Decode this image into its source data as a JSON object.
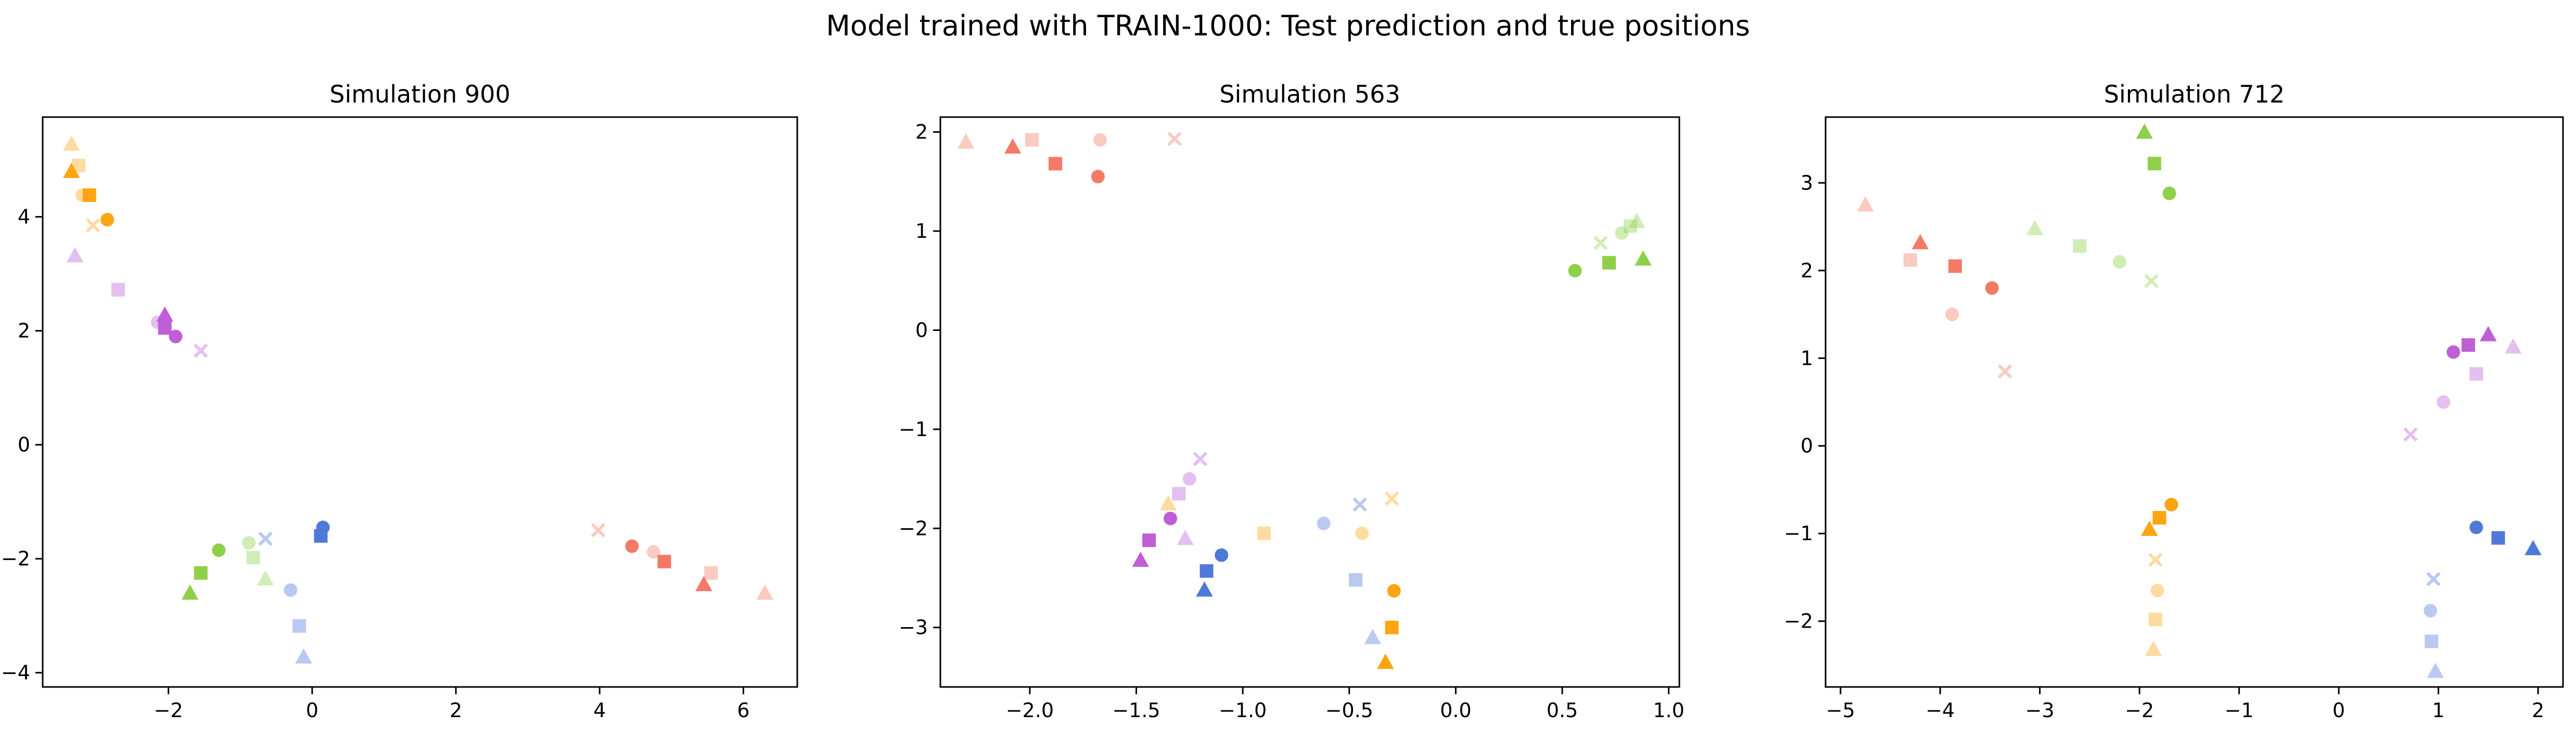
{
  "figure": {
    "title": "Model trained with TRAIN-1000: Test prediction and true positions"
  },
  "colors": {
    "red": "#f47a66",
    "orange": "#fda412",
    "green": "#8fd04a",
    "purple": "#bf5ed6",
    "blue": "#4f79d9"
  },
  "markers": {
    "circle": "circle",
    "square": "square",
    "triangle": "triangle-up",
    "cross": "x"
  },
  "chart_data": [
    {
      "type": "scatter",
      "title": "Simulation 900",
      "xlabel": "",
      "ylabel": "",
      "xlim": [
        -3.75,
        6.75
      ],
      "ylim": [
        -4.25,
        5.75
      ],
      "xticks": [
        -2,
        0,
        2,
        4,
        6
      ],
      "yticks": [
        -4,
        -2,
        0,
        2,
        4
      ],
      "grid": false,
      "points": [
        {
          "x": -3.35,
          "y": 5.28,
          "color": "orange",
          "marker": "triangle",
          "alpha": 0.4
        },
        {
          "x": -3.25,
          "y": 4.9,
          "color": "orange",
          "marker": "square",
          "alpha": 0.4
        },
        {
          "x": -3.35,
          "y": 4.8,
          "color": "orange",
          "marker": "triangle",
          "alpha": 1.0
        },
        {
          "x": -3.2,
          "y": 4.38,
          "color": "orange",
          "marker": "circle",
          "alpha": 0.4
        },
        {
          "x": -3.1,
          "y": 4.38,
          "color": "orange",
          "marker": "square",
          "alpha": 1.0
        },
        {
          "x": -3.05,
          "y": 3.85,
          "color": "orange",
          "marker": "cross",
          "alpha": 0.4
        },
        {
          "x": -2.85,
          "y": 3.95,
          "color": "orange",
          "marker": "circle",
          "alpha": 1.0
        },
        {
          "x": -3.3,
          "y": 3.32,
          "color": "purple",
          "marker": "triangle",
          "alpha": 0.4
        },
        {
          "x": -2.7,
          "y": 2.72,
          "color": "purple",
          "marker": "square",
          "alpha": 0.4
        },
        {
          "x": -2.05,
          "y": 2.28,
          "color": "purple",
          "marker": "triangle",
          "alpha": 1.0
        },
        {
          "x": -2.15,
          "y": 2.15,
          "color": "purple",
          "marker": "circle",
          "alpha": 0.4
        },
        {
          "x": -2.05,
          "y": 2.05,
          "color": "purple",
          "marker": "square",
          "alpha": 1.0
        },
        {
          "x": -1.9,
          "y": 1.9,
          "color": "purple",
          "marker": "circle",
          "alpha": 1.0
        },
        {
          "x": -1.55,
          "y": 1.65,
          "color": "purple",
          "marker": "cross",
          "alpha": 0.4
        },
        {
          "x": 0.15,
          "y": -1.45,
          "color": "blue",
          "marker": "circle",
          "alpha": 1.0
        },
        {
          "x": 0.12,
          "y": -1.6,
          "color": "blue",
          "marker": "square",
          "alpha": 1.0
        },
        {
          "x": -0.65,
          "y": -1.65,
          "color": "blue",
          "marker": "cross",
          "alpha": 0.4
        },
        {
          "x": -0.3,
          "y": -2.55,
          "color": "blue",
          "marker": "circle",
          "alpha": 0.4
        },
        {
          "x": -0.18,
          "y": -3.18,
          "color": "blue",
          "marker": "square",
          "alpha": 0.4
        },
        {
          "x": -0.12,
          "y": -3.72,
          "color": "blue",
          "marker": "triangle",
          "alpha": 0.4
        },
        {
          "x": -1.3,
          "y": -1.85,
          "color": "green",
          "marker": "circle",
          "alpha": 1.0
        },
        {
          "x": -0.88,
          "y": -1.72,
          "color": "green",
          "marker": "circle",
          "alpha": 0.4
        },
        {
          "x": -0.82,
          "y": -1.98,
          "color": "green",
          "marker": "square",
          "alpha": 0.4
        },
        {
          "x": -0.65,
          "y": -2.35,
          "color": "green",
          "marker": "triangle",
          "alpha": 0.4
        },
        {
          "x": -1.55,
          "y": -2.25,
          "color": "green",
          "marker": "square",
          "alpha": 1.0
        },
        {
          "x": -1.7,
          "y": -2.6,
          "color": "green",
          "marker": "triangle",
          "alpha": 1.0
        },
        {
          "x": 3.98,
          "y": -1.5,
          "color": "red",
          "marker": "cross",
          "alpha": 0.4
        },
        {
          "x": 4.45,
          "y": -1.78,
          "color": "red",
          "marker": "circle",
          "alpha": 1.0
        },
        {
          "x": 4.75,
          "y": -1.88,
          "color": "red",
          "marker": "circle",
          "alpha": 0.4
        },
        {
          "x": 4.9,
          "y": -2.05,
          "color": "red",
          "marker": "square",
          "alpha": 1.0
        },
        {
          "x": 5.55,
          "y": -2.25,
          "color": "red",
          "marker": "square",
          "alpha": 0.4
        },
        {
          "x": 5.45,
          "y": -2.45,
          "color": "red",
          "marker": "triangle",
          "alpha": 1.0
        },
        {
          "x": 6.3,
          "y": -2.6,
          "color": "red",
          "marker": "triangle",
          "alpha": 0.4
        }
      ]
    },
    {
      "type": "scatter",
      "title": "Simulation 563",
      "xlabel": "",
      "ylabel": "",
      "xlim": [
        -2.42,
        1.05
      ],
      "ylim": [
        -3.6,
        2.15
      ],
      "xticks": [
        -2.0,
        -1.5,
        -1.0,
        -0.5,
        0.0,
        0.5,
        1.0
      ],
      "xtick_labels": [
        "−2.0",
        "−1.5",
        "−1.0",
        "−0.5",
        "0.0",
        "0.5",
        "1.0"
      ],
      "yticks": [
        -3,
        -2,
        -1,
        0,
        1,
        2
      ],
      "grid": false,
      "points": [
        {
          "x": -2.3,
          "y": 1.9,
          "color": "red",
          "marker": "triangle",
          "alpha": 0.4
        },
        {
          "x": -2.08,
          "y": 1.85,
          "color": "red",
          "marker": "triangle",
          "alpha": 1.0
        },
        {
          "x": -1.99,
          "y": 1.92,
          "color": "red",
          "marker": "square",
          "alpha": 0.4
        },
        {
          "x": -1.88,
          "y": 1.68,
          "color": "red",
          "marker": "square",
          "alpha": 1.0
        },
        {
          "x": -1.67,
          "y": 1.92,
          "color": "red",
          "marker": "circle",
          "alpha": 0.4
        },
        {
          "x": -1.68,
          "y": 1.55,
          "color": "red",
          "marker": "circle",
          "alpha": 1.0
        },
        {
          "x": -1.32,
          "y": 1.93,
          "color": "red",
          "marker": "cross",
          "alpha": 0.4
        },
        {
          "x": 0.85,
          "y": 1.1,
          "color": "green",
          "marker": "triangle",
          "alpha": 0.4
        },
        {
          "x": 0.82,
          "y": 1.05,
          "color": "green",
          "marker": "square",
          "alpha": 0.4
        },
        {
          "x": 0.78,
          "y": 0.98,
          "color": "green",
          "marker": "circle",
          "alpha": 0.4
        },
        {
          "x": 0.68,
          "y": 0.88,
          "color": "green",
          "marker": "cross",
          "alpha": 0.4
        },
        {
          "x": 0.88,
          "y": 0.72,
          "color": "green",
          "marker": "triangle",
          "alpha": 1.0
        },
        {
          "x": 0.72,
          "y": 0.68,
          "color": "green",
          "marker": "square",
          "alpha": 1.0
        },
        {
          "x": 0.56,
          "y": 0.6,
          "color": "green",
          "marker": "circle",
          "alpha": 1.0
        },
        {
          "x": -1.2,
          "y": -1.3,
          "color": "purple",
          "marker": "cross",
          "alpha": 0.4
        },
        {
          "x": -1.25,
          "y": -1.5,
          "color": "purple",
          "marker": "circle",
          "alpha": 0.4
        },
        {
          "x": -1.3,
          "y": -1.65,
          "color": "purple",
          "marker": "square",
          "alpha": 0.4
        },
        {
          "x": -1.34,
          "y": -1.9,
          "color": "purple",
          "marker": "circle",
          "alpha": 1.0
        },
        {
          "x": -1.27,
          "y": -2.1,
          "color": "purple",
          "marker": "triangle",
          "alpha": 0.4
        },
        {
          "x": -1.44,
          "y": -2.12,
          "color": "purple",
          "marker": "square",
          "alpha": 1.0
        },
        {
          "x": -1.48,
          "y": -2.32,
          "color": "purple",
          "marker": "triangle",
          "alpha": 1.0
        },
        {
          "x": -1.35,
          "y": -1.75,
          "color": "orange",
          "marker": "triangle",
          "alpha": 0.4
        },
        {
          "x": -0.9,
          "y": -2.05,
          "color": "orange",
          "marker": "square",
          "alpha": 0.4
        },
        {
          "x": -0.44,
          "y": -2.05,
          "color": "orange",
          "marker": "circle",
          "alpha": 0.4
        },
        {
          "x": -0.3,
          "y": -1.7,
          "color": "orange",
          "marker": "cross",
          "alpha": 0.4
        },
        {
          "x": -0.29,
          "y": -2.63,
          "color": "orange",
          "marker": "circle",
          "alpha": 1.0
        },
        {
          "x": -0.3,
          "y": -3.0,
          "color": "orange",
          "marker": "square",
          "alpha": 1.0
        },
        {
          "x": -0.33,
          "y": -3.35,
          "color": "orange",
          "marker": "triangle",
          "alpha": 1.0
        },
        {
          "x": -0.45,
          "y": -1.76,
          "color": "blue",
          "marker": "cross",
          "alpha": 0.4
        },
        {
          "x": -0.62,
          "y": -1.95,
          "color": "blue",
          "marker": "circle",
          "alpha": 0.4
        },
        {
          "x": -0.47,
          "y": -2.52,
          "color": "blue",
          "marker": "square",
          "alpha": 0.4
        },
        {
          "x": -0.39,
          "y": -3.1,
          "color": "blue",
          "marker": "triangle",
          "alpha": 0.4
        },
        {
          "x": -1.1,
          "y": -2.27,
          "color": "blue",
          "marker": "circle",
          "alpha": 1.0
        },
        {
          "x": -1.17,
          "y": -2.43,
          "color": "blue",
          "marker": "square",
          "alpha": 1.0
        },
        {
          "x": -1.18,
          "y": -2.62,
          "color": "blue",
          "marker": "triangle",
          "alpha": 1.0
        }
      ]
    },
    {
      "type": "scatter",
      "title": "Simulation 712",
      "xlabel": "",
      "ylabel": "",
      "xlim": [
        -5.15,
        2.25
      ],
      "ylim": [
        -2.75,
        3.75
      ],
      "xticks": [
        -5,
        -4,
        -3,
        -2,
        -1,
        0,
        1,
        2
      ],
      "xtick_labels": [
        "−5",
        "−4",
        "−3",
        "−2",
        "−1",
        "0",
        "1",
        "2"
      ],
      "yticks": [
        -2,
        -1,
        0,
        1,
        2,
        3
      ],
      "ytick_labels": [
        "−2",
        "−1",
        "0",
        "1",
        "2",
        "3"
      ],
      "grid": false,
      "points": [
        {
          "x": -4.75,
          "y": 2.75,
          "color": "red",
          "marker": "triangle",
          "alpha": 0.4
        },
        {
          "x": -4.2,
          "y": 2.32,
          "color": "red",
          "marker": "triangle",
          "alpha": 1.0
        },
        {
          "x": -4.3,
          "y": 2.12,
          "color": "red",
          "marker": "square",
          "alpha": 0.4
        },
        {
          "x": -3.85,
          "y": 2.05,
          "color": "red",
          "marker": "square",
          "alpha": 1.0
        },
        {
          "x": -3.88,
          "y": 1.5,
          "color": "red",
          "marker": "circle",
          "alpha": 0.4
        },
        {
          "x": -3.48,
          "y": 1.8,
          "color": "red",
          "marker": "circle",
          "alpha": 1.0
        },
        {
          "x": -3.35,
          "y": 0.85,
          "color": "red",
          "marker": "cross",
          "alpha": 0.4
        },
        {
          "x": -1.95,
          "y": 3.58,
          "color": "green",
          "marker": "triangle",
          "alpha": 1.0
        },
        {
          "x": -1.85,
          "y": 3.22,
          "color": "green",
          "marker": "square",
          "alpha": 1.0
        },
        {
          "x": -1.7,
          "y": 2.88,
          "color": "green",
          "marker": "circle",
          "alpha": 1.0
        },
        {
          "x": -3.05,
          "y": 2.48,
          "color": "green",
          "marker": "triangle",
          "alpha": 0.4
        },
        {
          "x": -2.6,
          "y": 2.28,
          "color": "green",
          "marker": "square",
          "alpha": 0.4
        },
        {
          "x": -2.2,
          "y": 2.1,
          "color": "green",
          "marker": "circle",
          "alpha": 0.4
        },
        {
          "x": -1.88,
          "y": 1.88,
          "color": "green",
          "marker": "cross",
          "alpha": 0.4
        },
        {
          "x": 1.5,
          "y": 1.27,
          "color": "purple",
          "marker": "triangle",
          "alpha": 1.0
        },
        {
          "x": 1.75,
          "y": 1.13,
          "color": "purple",
          "marker": "triangle",
          "alpha": 0.4
        },
        {
          "x": 1.3,
          "y": 1.15,
          "color": "purple",
          "marker": "square",
          "alpha": 1.0
        },
        {
          "x": 1.15,
          "y": 1.07,
          "color": "purple",
          "marker": "circle",
          "alpha": 1.0
        },
        {
          "x": 1.38,
          "y": 0.82,
          "color": "purple",
          "marker": "square",
          "alpha": 0.4
        },
        {
          "x": 1.05,
          "y": 0.5,
          "color": "purple",
          "marker": "circle",
          "alpha": 0.4
        },
        {
          "x": 0.72,
          "y": 0.13,
          "color": "purple",
          "marker": "cross",
          "alpha": 0.4
        },
        {
          "x": -1.68,
          "y": -0.67,
          "color": "orange",
          "marker": "circle",
          "alpha": 1.0
        },
        {
          "x": -1.8,
          "y": -0.82,
          "color": "orange",
          "marker": "square",
          "alpha": 1.0
        },
        {
          "x": -1.9,
          "y": -0.95,
          "color": "orange",
          "marker": "triangle",
          "alpha": 1.0
        },
        {
          "x": -1.84,
          "y": -1.3,
          "color": "orange",
          "marker": "cross",
          "alpha": 0.4
        },
        {
          "x": -1.82,
          "y": -1.65,
          "color": "orange",
          "marker": "circle",
          "alpha": 0.4
        },
        {
          "x": -1.84,
          "y": -1.98,
          "color": "orange",
          "marker": "square",
          "alpha": 0.4
        },
        {
          "x": -1.86,
          "y": -2.32,
          "color": "orange",
          "marker": "triangle",
          "alpha": 0.4
        },
        {
          "x": 1.38,
          "y": -0.93,
          "color": "blue",
          "marker": "circle",
          "alpha": 1.0
        },
        {
          "x": 1.6,
          "y": -1.05,
          "color": "blue",
          "marker": "square",
          "alpha": 1.0
        },
        {
          "x": 1.95,
          "y": -1.17,
          "color": "blue",
          "marker": "triangle",
          "alpha": 1.0
        },
        {
          "x": 0.95,
          "y": -1.52,
          "color": "blue",
          "marker": "cross",
          "alpha": 0.4
        },
        {
          "x": 0.92,
          "y": -1.88,
          "color": "blue",
          "marker": "circle",
          "alpha": 0.4
        },
        {
          "x": 0.93,
          "y": -2.23,
          "color": "blue",
          "marker": "square",
          "alpha": 0.4
        },
        {
          "x": 0.97,
          "y": -2.57,
          "color": "blue",
          "marker": "triangle",
          "alpha": 0.4
        }
      ]
    }
  ]
}
